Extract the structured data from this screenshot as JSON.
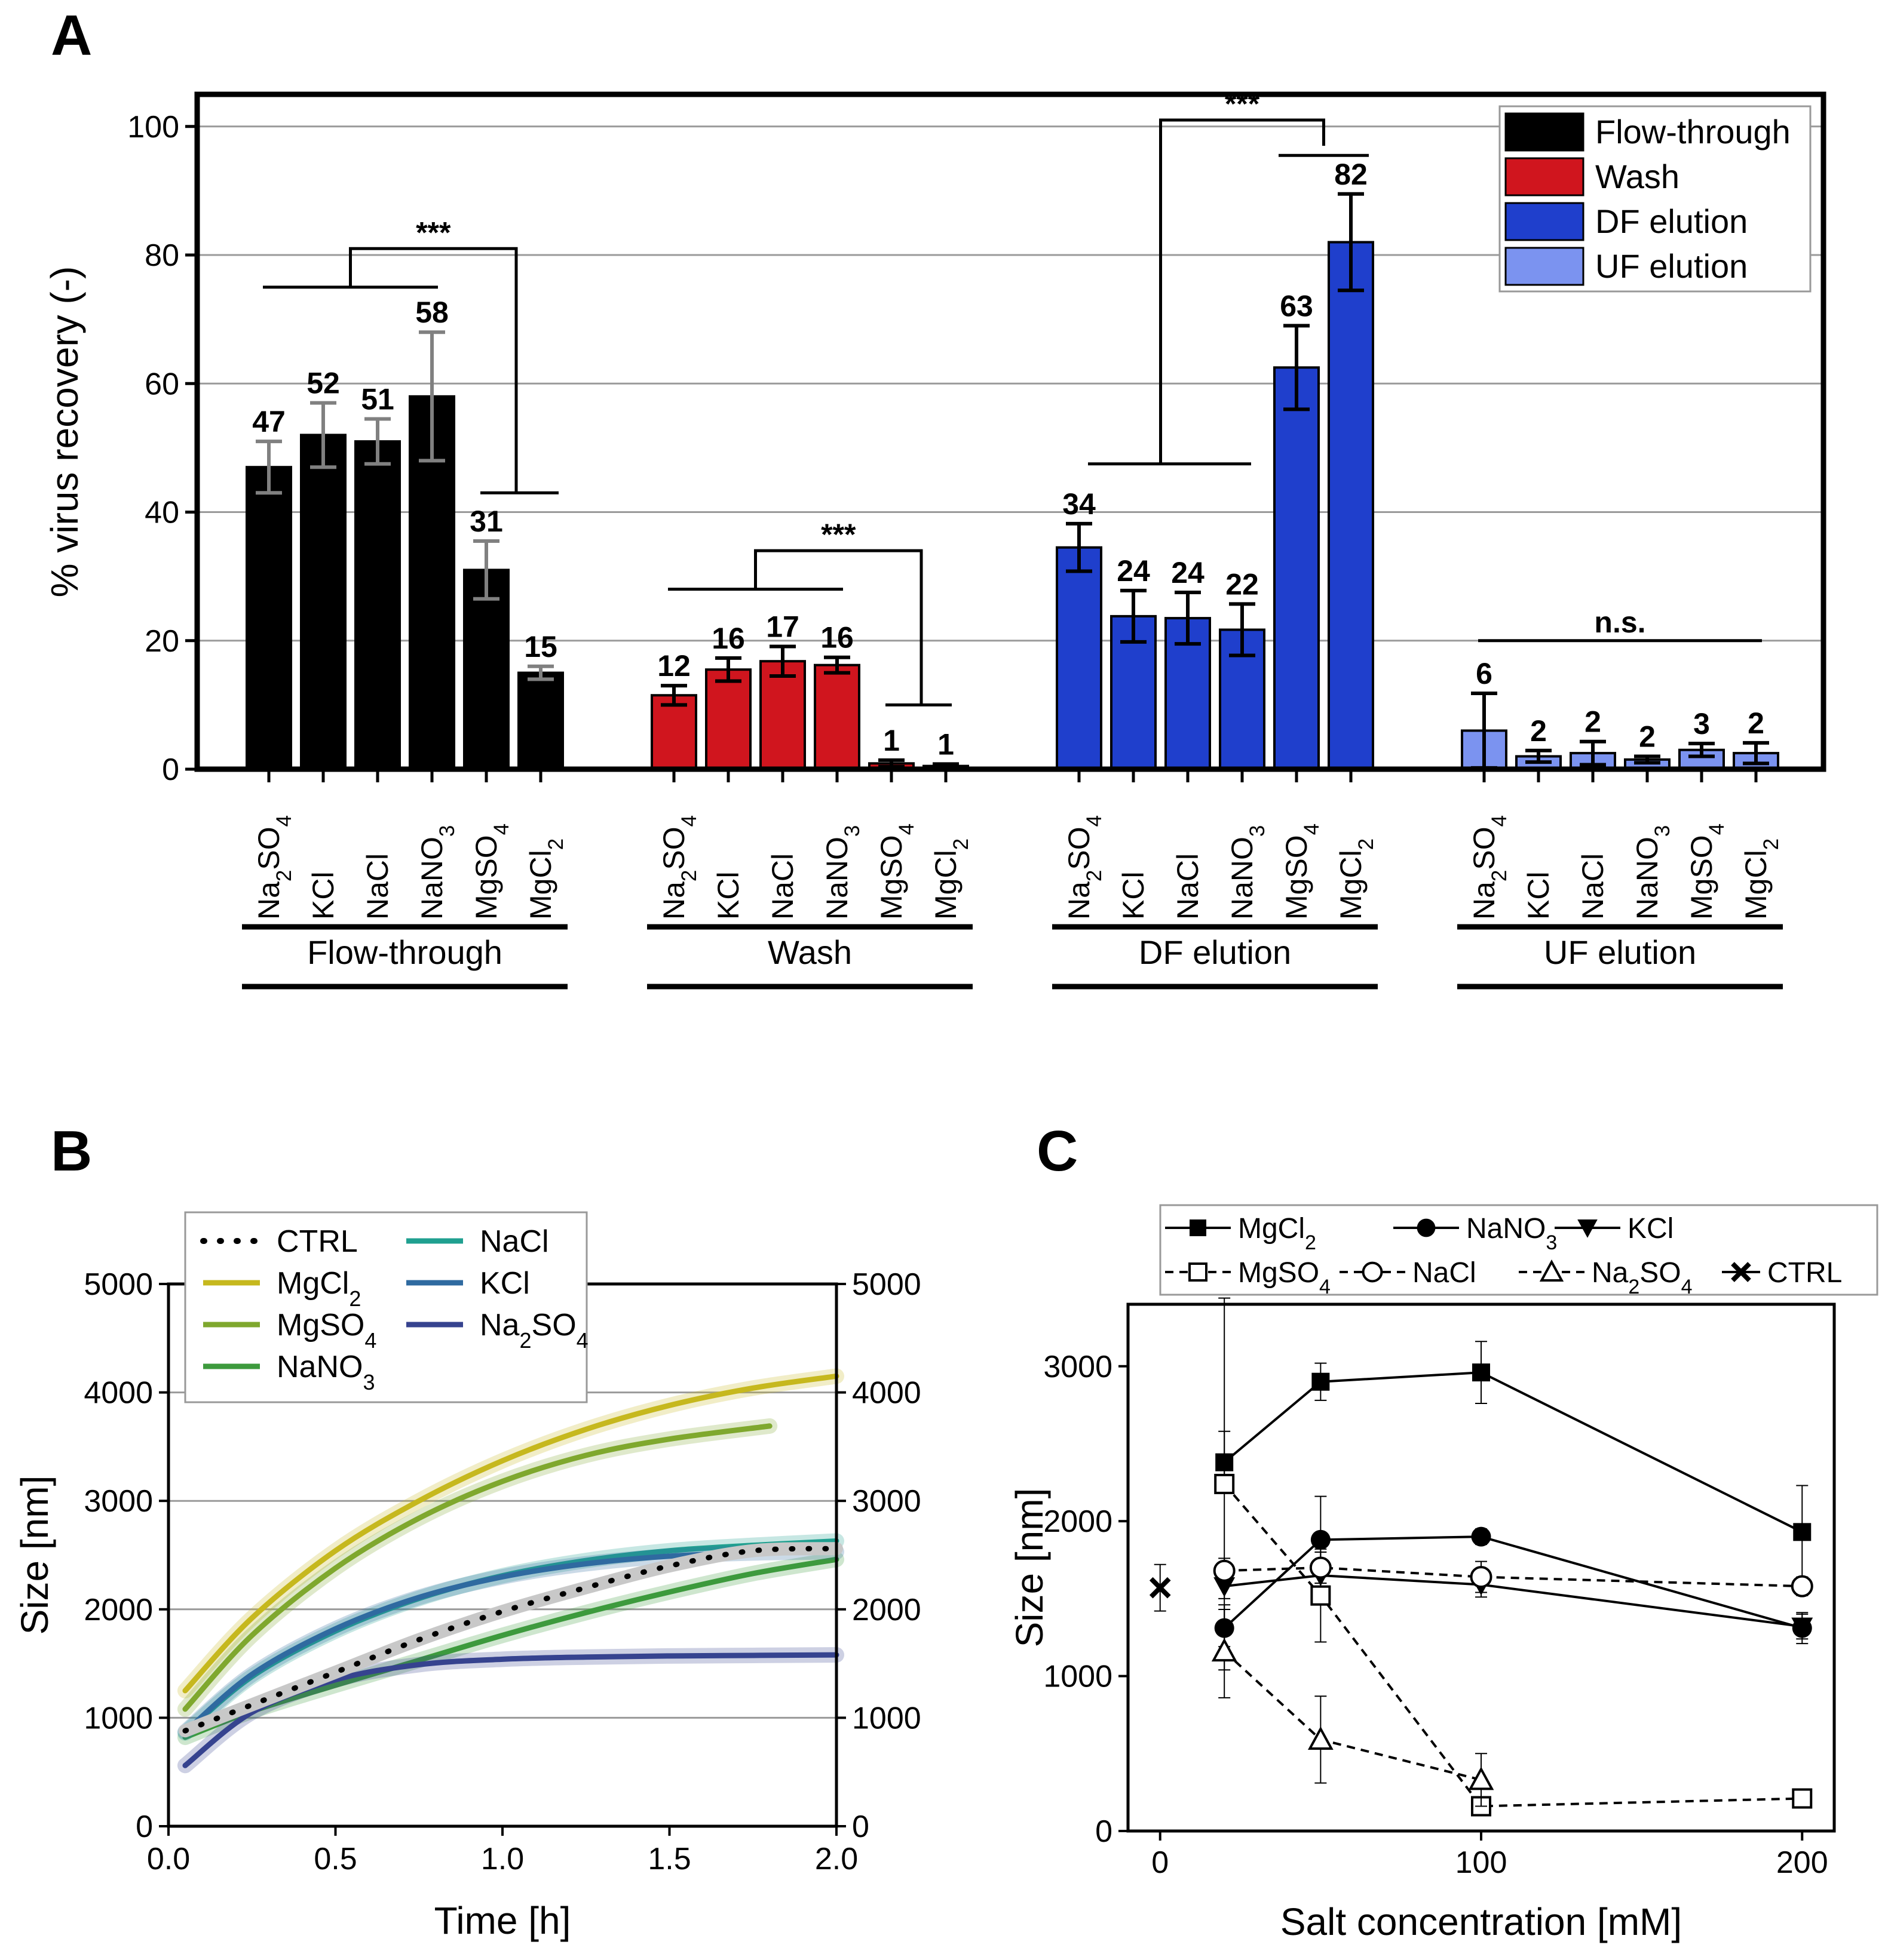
{
  "chart_data": [
    {
      "panel": "A",
      "type": "bar",
      "ylabel": "% virus recovery (-)",
      "ylim": [
        0,
        105
      ],
      "yticks": [
        0,
        20,
        40,
        60,
        80,
        100
      ],
      "grid": true,
      "legend_position": "top-right",
      "salts": [
        "Na2SO4",
        "KCl",
        "NaCl",
        "NaNO3",
        "MgSO4",
        "MgCl2"
      ],
      "salt_labels": [
        {
          "base": "Na",
          "sub1": "2",
          "mid": "SO",
          "sub2": "4"
        },
        {
          "base": "KCl",
          "sub1": "",
          "mid": "",
          "sub2": ""
        },
        {
          "base": "NaCl",
          "sub1": "",
          "mid": "",
          "sub2": ""
        },
        {
          "base": "NaNO",
          "sub1": "3",
          "mid": "",
          "sub2": ""
        },
        {
          "base": "MgSO",
          "sub1": "4",
          "mid": "",
          "sub2": ""
        },
        {
          "base": "MgCl",
          "sub1": "2",
          "mid": "",
          "sub2": ""
        }
      ],
      "series": [
        {
          "name": "Flow-through",
          "color": "#000000",
          "errcolor": "#808080",
          "values": [
            47,
            52,
            51,
            58,
            31,
            15
          ],
          "errors": [
            4,
            5,
            3.5,
            10,
            4.5,
            1
          ],
          "labels": [
            "47",
            "52",
            "51",
            "58",
            "31",
            "15"
          ]
        },
        {
          "name": "Wash",
          "color": "#d0151e",
          "errcolor": "#000000",
          "values": [
            11.5,
            15.5,
            16.8,
            16.2,
            0.9,
            0.5
          ],
          "errors": [
            1.5,
            1.8,
            2.3,
            1.2,
            0.5,
            0.3
          ],
          "labels": [
            "12",
            "16",
            "17",
            "16",
            "1",
            "1"
          ]
        },
        {
          "name": "DF elution",
          "color": "#1f3fcc",
          "errcolor": "#000000",
          "values": [
            34.5,
            23.8,
            23.5,
            21.7,
            62.5,
            82
          ],
          "errors": [
            3.7,
            4,
            4,
            4,
            6.5,
            7.5
          ],
          "labels": [
            "34",
            "24",
            "24",
            "22",
            "63",
            "82"
          ]
        },
        {
          "name": "UF elution",
          "color": "#7b93f0",
          "errcolor": "#000000",
          "values": [
            6,
            2,
            2.5,
            1.5,
            3,
            2.5
          ],
          "errors": [
            5.8,
            0.9,
            1.8,
            0.5,
            1,
            1.6
          ],
          "labels": [
            "6",
            "2",
            "2",
            "2",
            "3",
            "2"
          ]
        }
      ],
      "significance": [
        "***",
        "***",
        "***",
        "n.s."
      ]
    },
    {
      "panel": "B",
      "type": "line",
      "xlabel": "Time [h]",
      "ylabel": "Size [nm]",
      "xlim": [
        0,
        2
      ],
      "ylim": [
        0,
        5000
      ],
      "xticks": [
        "0.0",
        "0.5",
        "1.0",
        "1.5",
        "2.0"
      ],
      "yticks": [
        "0",
        "1000",
        "2000",
        "3000",
        "4000",
        "5000"
      ],
      "legend_position": "top-left",
      "series": [
        {
          "name": "CTRL",
          "name_base": "CTRL",
          "name_sub": "",
          "name_tail": "",
          "color": "#000000",
          "dashed": true,
          "x": [
            0.05,
            0.25,
            0.5,
            0.75,
            1.0,
            1.25,
            1.5,
            1.75,
            2.0
          ],
          "y": [
            880,
            1120,
            1420,
            1720,
            1980,
            2200,
            2400,
            2540,
            2560
          ]
        },
        {
          "name": "MgCl2",
          "name_base": "MgCl",
          "name_sub": "2",
          "name_tail": "",
          "color": "#c6b81e",
          "dashed": false,
          "x": [
            0.05,
            0.25,
            0.5,
            0.75,
            1.0,
            1.25,
            1.5,
            1.75,
            2.0
          ],
          "y": [
            1250,
            1920,
            2540,
            3000,
            3370,
            3660,
            3880,
            4040,
            4150
          ]
        },
        {
          "name": "MgSO4",
          "name_base": "MgSO",
          "name_sub": "4",
          "name_tail": "",
          "color": "#7fa82e",
          "dashed": false,
          "x": [
            0.05,
            0.25,
            0.5,
            0.75,
            1.0,
            1.25,
            1.5,
            1.8
          ],
          "y": [
            1080,
            1760,
            2380,
            2840,
            3180,
            3420,
            3570,
            3690
          ]
        },
        {
          "name": "NaNO3",
          "name_base": "NaNO",
          "name_sub": "3",
          "name_tail": "",
          "color": "#3d9a3d",
          "dashed": false,
          "x": [
            0.05,
            0.25,
            0.5,
            0.75,
            1.0,
            1.25,
            1.5,
            1.75,
            2.0
          ],
          "y": [
            820,
            1060,
            1300,
            1530,
            1760,
            1970,
            2160,
            2330,
            2460
          ]
        },
        {
          "name": "NaCl",
          "name_base": "NaCl",
          "name_sub": "",
          "name_tail": "",
          "color": "#20a090",
          "dashed": false,
          "x": [
            0.05,
            0.25,
            0.5,
            0.75,
            1.0,
            1.25,
            1.5,
            1.75,
            2.0
          ],
          "y": [
            860,
            1380,
            1800,
            2100,
            2310,
            2450,
            2540,
            2590,
            2630
          ]
        },
        {
          "name": "KCl",
          "name_base": "KCl",
          "name_sub": "",
          "name_tail": "",
          "color": "#2f6aa0",
          "dashed": false,
          "x": [
            0.05,
            0.25,
            0.5,
            0.75,
            1.0,
            1.25,
            1.5,
            1.75,
            2.0
          ],
          "y": [
            870,
            1400,
            1820,
            2110,
            2300,
            2420,
            2490,
            2520,
            2530
          ]
        },
        {
          "name": "Na2SO4",
          "name_base": "Na",
          "name_sub": "2",
          "name_tail": "SO",
          "name_sub2": "4",
          "color": "#36438f",
          "dashed": false,
          "x": [
            0.05,
            0.25,
            0.5,
            0.75,
            1.0,
            1.25,
            1.5,
            1.75,
            2.0
          ],
          "y": [
            560,
            1050,
            1350,
            1490,
            1540,
            1560,
            1570,
            1575,
            1580
          ]
        }
      ]
    },
    {
      "panel": "C",
      "type": "line",
      "xlabel": "Salt concentration [mM]",
      "ylabel": "Size [nm]",
      "xlim": [
        -10,
        210
      ],
      "ylim": [
        0,
        3400
      ],
      "xticks": [
        "0",
        "100",
        "200"
      ],
      "yticks": [
        "0",
        "1000",
        "2000",
        "3000"
      ],
      "legend_position": "top",
      "series": [
        {
          "name": "MgCl2",
          "label_base": "MgCl",
          "label_sub": "2",
          "label_tail": "",
          "marker": "square-filled",
          "dashed": false,
          "x": [
            20,
            50,
            100,
            200
          ],
          "y": [
            2380,
            2900,
            2960,
            1930
          ],
          "err": [
            200,
            120,
            200,
            300
          ]
        },
        {
          "name": "NaNO3",
          "label_base": "NaNO",
          "label_sub": "3",
          "label_tail": "",
          "marker": "circle-filled",
          "dashed": false,
          "x": [
            20,
            50,
            100,
            200
          ],
          "y": [
            1310,
            1880,
            1900,
            1310
          ],
          "err": [
            120,
            280,
            50,
            100
          ]
        },
        {
          "name": "KCl",
          "label_base": "KCl",
          "label_sub": "",
          "label_tail": "",
          "marker": "triangle-down-filled",
          "dashed": false,
          "x": [
            20,
            50,
            100,
            200
          ],
          "y": [
            1580,
            1650,
            1590,
            1320
          ],
          "err": [
            80,
            80,
            80,
            80
          ]
        },
        {
          "name": "MgSO4",
          "label_base": "MgSO",
          "label_sub": "4",
          "label_tail": "",
          "marker": "square-open",
          "dashed": true,
          "x": [
            20,
            50,
            100,
            200
          ],
          "y": [
            2240,
            1520,
            160,
            210
          ],
          "err": [
            1200,
            300,
            50,
            30
          ]
        },
        {
          "name": "NaCl",
          "label_base": "NaCl",
          "label_sub": "",
          "label_tail": "",
          "marker": "circle-open",
          "dashed": true,
          "x": [
            20,
            50,
            100,
            200
          ],
          "y": [
            1680,
            1700,
            1640,
            1580
          ],
          "err": [
            80,
            100,
            100,
            60
          ]
        },
        {
          "name": "Na2SO4",
          "label_base": "Na",
          "label_sub": "2",
          "label_tail": "SO",
          "label_sub2": "4",
          "marker": "triangle-up-open",
          "dashed": true,
          "x": [
            20,
            50,
            100
          ],
          "y": [
            1160,
            590,
            330
          ],
          "err": [
            300,
            280,
            170
          ]
        },
        {
          "name": "CTRL",
          "label_base": "CTRL",
          "label_sub": "",
          "label_tail": "",
          "marker": "x",
          "dashed": false,
          "x": [
            0
          ],
          "y": [
            1570
          ],
          "err": [
            150
          ]
        }
      ]
    }
  ],
  "panels": {
    "A": "A",
    "B": "B",
    "C": "C"
  }
}
